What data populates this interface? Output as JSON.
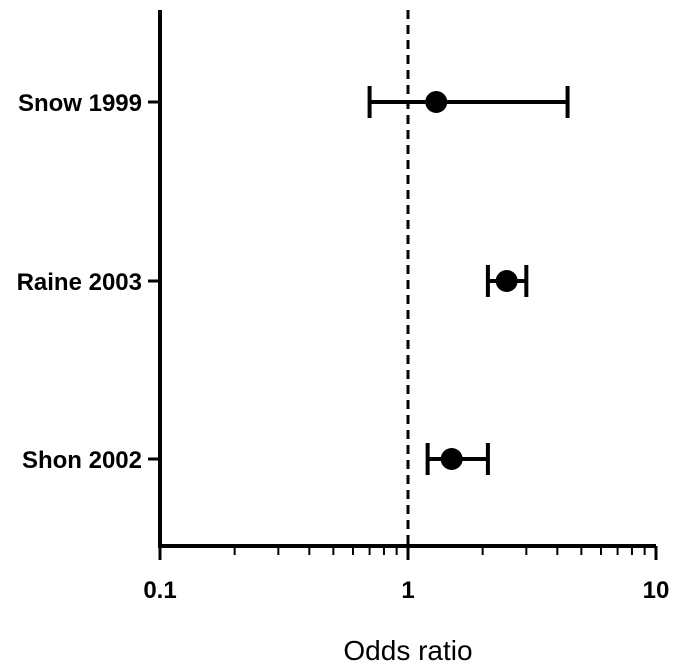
{
  "chart_data": {
    "type": "scatter",
    "subtype": "forest-plot",
    "title": "",
    "xlabel": "Odds ratio",
    "ylabel": "",
    "x_scale": "log",
    "xlim": [
      0.1,
      10
    ],
    "x_ticks": [
      {
        "value": 0.1,
        "label": "0.1"
      },
      {
        "value": 1,
        "label": "1"
      },
      {
        "value": 10,
        "label": "10"
      }
    ],
    "reference_line": {
      "x": 1,
      "style": "dashed"
    },
    "grid": false,
    "legend": "none",
    "color": "#000000",
    "studies": [
      {
        "label": "Snow 1999",
        "or": 1.3,
        "ci_low": 0.7,
        "ci_high": 4.4
      },
      {
        "label": "Raine 2003",
        "or": 2.5,
        "ci_low": 2.1,
        "ci_high": 3.0
      },
      {
        "label": "Shon 2002",
        "or": 1.5,
        "ci_low": 1.2,
        "ci_high": 2.1
      }
    ]
  }
}
